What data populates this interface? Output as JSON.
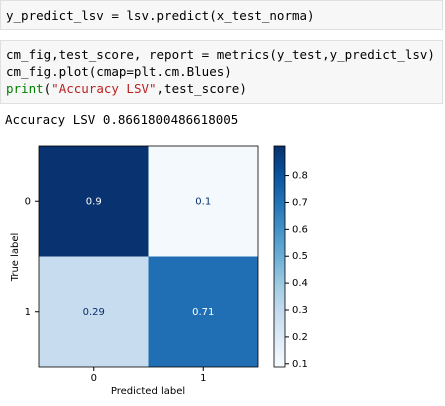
{
  "cells": [
    {
      "lines": [
        [
          "y_predict_lsv = lsv.predict(x_test_norma)"
        ]
      ]
    },
    {
      "lines": [
        [
          "cm_fig,test_score, report = metrics(y_test,y_predict_lsv)"
        ],
        [
          "cm_fig.plot(cmap=plt.cm.Blues)"
        ],
        [
          "print",
          "(",
          "\"Accuracy LSV\"",
          ",test_score)"
        ]
      ]
    }
  ],
  "output": "Accuracy LSV 0.8661800486618005",
  "chart_data": {
    "type": "heatmap",
    "colormap": "Blues",
    "x_categories": [
      "0",
      "1"
    ],
    "y_categories": [
      "0",
      "1"
    ],
    "values": [
      [
        0.9,
        0.1
      ],
      [
        0.29,
        0.71
      ]
    ],
    "xlabel": "Predicted label",
    "ylabel": "True label",
    "clim": [
      0.088,
      0.91
    ],
    "colorbar_ticks": [
      0.1,
      0.2,
      0.3,
      0.4,
      0.5,
      0.6,
      0.7,
      0.8
    ]
  }
}
